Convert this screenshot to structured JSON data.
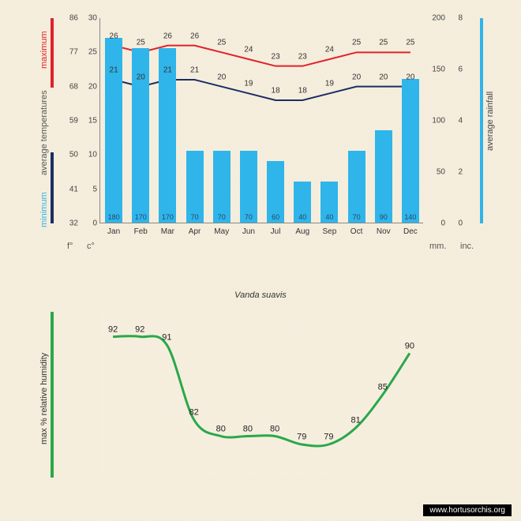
{
  "title": "Vanda suavis",
  "watermark": "www.hortusorchis.org",
  "colors": {
    "bar": "#2fb5ea",
    "max_line": "#e1222a",
    "min_line": "#1b2e64",
    "humidity_line": "#2aa84a",
    "bg": "#f5eede",
    "text": "#333333"
  },
  "chart1": {
    "months": [
      "Jan",
      "Feb",
      "Mar",
      "Apr",
      "May",
      "Jun",
      "Jul",
      "Aug",
      "Sep",
      "Oct",
      "Nov",
      "Dec"
    ],
    "rainfall_mm": [
      180,
      170,
      170,
      70,
      70,
      70,
      60,
      40,
      40,
      70,
      90,
      140
    ],
    "max_temp_c": [
      26,
      25,
      26,
      26,
      25,
      24,
      23,
      23,
      24,
      25,
      25,
      25
    ],
    "min_temp_c": [
      21,
      20,
      21,
      21,
      20,
      19,
      18,
      18,
      19,
      20,
      20,
      20
    ],
    "axes": {
      "f_label": "f°",
      "c_label": "c°",
      "mm_label": "mm.",
      "inc_label": "inc.",
      "left_f_ticks": [
        32,
        41,
        50,
        59,
        68,
        77,
        86
      ],
      "left_c_ticks": [
        0,
        5,
        10,
        15,
        20,
        25,
        30
      ],
      "right_mm_ticks": [
        0,
        50,
        100,
        150,
        200
      ],
      "right_inc_ticks": [
        0,
        2,
        4,
        6,
        8
      ],
      "c_range": [
        0,
        30
      ],
      "mm_range": [
        0,
        200
      ]
    },
    "y_labels": {
      "maximum": "maximum",
      "avg_temp": "average  temperatures",
      "minimum": "minimum",
      "avg_rain": "average rainfall"
    }
  },
  "chart2": {
    "label": "max  %   relative  humidity",
    "values": [
      92,
      92,
      91,
      82,
      80,
      80,
      80,
      79,
      79,
      81,
      85,
      90
    ],
    "y_range": [
      75,
      95
    ]
  }
}
